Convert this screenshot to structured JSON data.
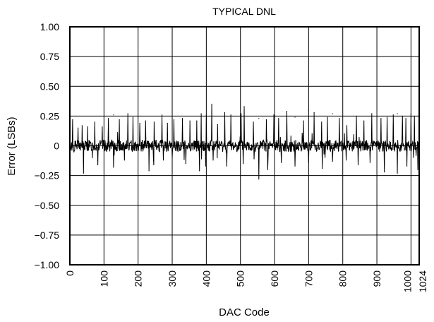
{
  "chart_data": {
    "type": "line",
    "title": "TYPICAL DNL",
    "xlabel": "DAC Code",
    "ylabel": "Error (LSBs)",
    "xlim": [
      0,
      1024
    ],
    "ylim": [
      -1.0,
      1.0
    ],
    "x_ticks": [
      0,
      100,
      200,
      300,
      400,
      500,
      600,
      700,
      800,
      900,
      1000,
      1024
    ],
    "x_tick_labels": [
      "0",
      "100",
      "200",
      "300",
      "400",
      "500",
      "600",
      "700",
      "800",
      "900",
      "1000",
      "1024"
    ],
    "y_ticks": [
      1.0,
      0.75,
      0.5,
      0.25,
      0,
      -0.25,
      -0.5,
      -0.75,
      -1.0
    ],
    "y_tick_labels": [
      "1.00",
      "0.75",
      "0.50",
      "0.25",
      "0",
      "−0.25",
      "−0.50",
      "−0.75",
      "−1.00"
    ],
    "grid": true,
    "line_color": "#000000",
    "series": [
      {
        "baseline_band": [
          -0.05,
          0.05
        ],
        "peaks": [
          [
            8,
            0.22
          ],
          [
            24,
            0.15
          ],
          [
            36,
            0.17
          ],
          [
            52,
            0.16
          ],
          [
            73,
            0.2
          ],
          [
            95,
            0.16
          ],
          [
            113,
            0.23
          ],
          [
            128,
            0.26
          ],
          [
            145,
            0.22
          ],
          [
            170,
            0.27
          ],
          [
            185,
            0.24
          ],
          [
            205,
            0.19
          ],
          [
            222,
            0.21
          ],
          [
            247,
            0.2
          ],
          [
            270,
            0.26
          ],
          [
            286,
            0.19
          ],
          [
            305,
            0.22
          ],
          [
            330,
            0.23
          ],
          [
            352,
            0.21
          ],
          [
            372,
            0.21
          ],
          [
            385,
            0.27
          ],
          [
            400,
            0.26
          ],
          [
            416,
            0.35
          ],
          [
            433,
            0.18
          ],
          [
            454,
            0.28
          ],
          [
            472,
            0.26
          ],
          [
            502,
            0.27
          ],
          [
            511,
            0.33
          ],
          [
            538,
            0.2
          ],
          [
            554,
            0.23
          ],
          [
            576,
            0.22
          ],
          [
            598,
            0.26
          ],
          [
            612,
            0.23
          ],
          [
            636,
            0.29
          ],
          [
            660,
            0.24
          ],
          [
            685,
            0.21
          ],
          [
            700,
            0.3
          ],
          [
            716,
            0.28
          ],
          [
            738,
            0.2
          ],
          [
            755,
            0.24
          ],
          [
            770,
            0.27
          ],
          [
            790,
            0.23
          ],
          [
            812,
            0.17
          ],
          [
            840,
            0.25
          ],
          [
            862,
            0.21
          ],
          [
            885,
            0.27
          ],
          [
            912,
            0.23
          ],
          [
            930,
            0.24
          ],
          [
            948,
            0.26
          ],
          [
            960,
            0.27
          ],
          [
            975,
            0.25
          ],
          [
            985,
            0.23
          ],
          [
            1000,
            0.27
          ],
          [
            1010,
            0.25
          ]
        ],
        "troughs": [
          [
            12,
            -0.05
          ],
          [
            40,
            -0.23
          ],
          [
            66,
            -0.1
          ],
          [
            82,
            -0.16
          ],
          [
            128,
            -0.18
          ],
          [
            160,
            -0.12
          ],
          [
            232,
            -0.21
          ],
          [
            246,
            -0.16
          ],
          [
            274,
            -0.12
          ],
          [
            300,
            -0.1
          ],
          [
            340,
            -0.15
          ],
          [
            380,
            -0.21
          ],
          [
            398,
            -0.17
          ],
          [
            420,
            -0.12
          ],
          [
            460,
            -0.17
          ],
          [
            508,
            -0.15
          ],
          [
            540,
            -0.11
          ],
          [
            554,
            -0.28
          ],
          [
            580,
            -0.2
          ],
          [
            620,
            -0.14
          ],
          [
            660,
            -0.17
          ],
          [
            700,
            -0.14
          ],
          [
            740,
            -0.19
          ],
          [
            770,
            -0.13
          ],
          [
            810,
            -0.12
          ],
          [
            845,
            -0.16
          ],
          [
            880,
            -0.14
          ],
          [
            922,
            -0.22
          ],
          [
            960,
            -0.23
          ],
          [
            988,
            -0.17
          ],
          [
            1020,
            -0.2
          ]
        ]
      }
    ]
  }
}
